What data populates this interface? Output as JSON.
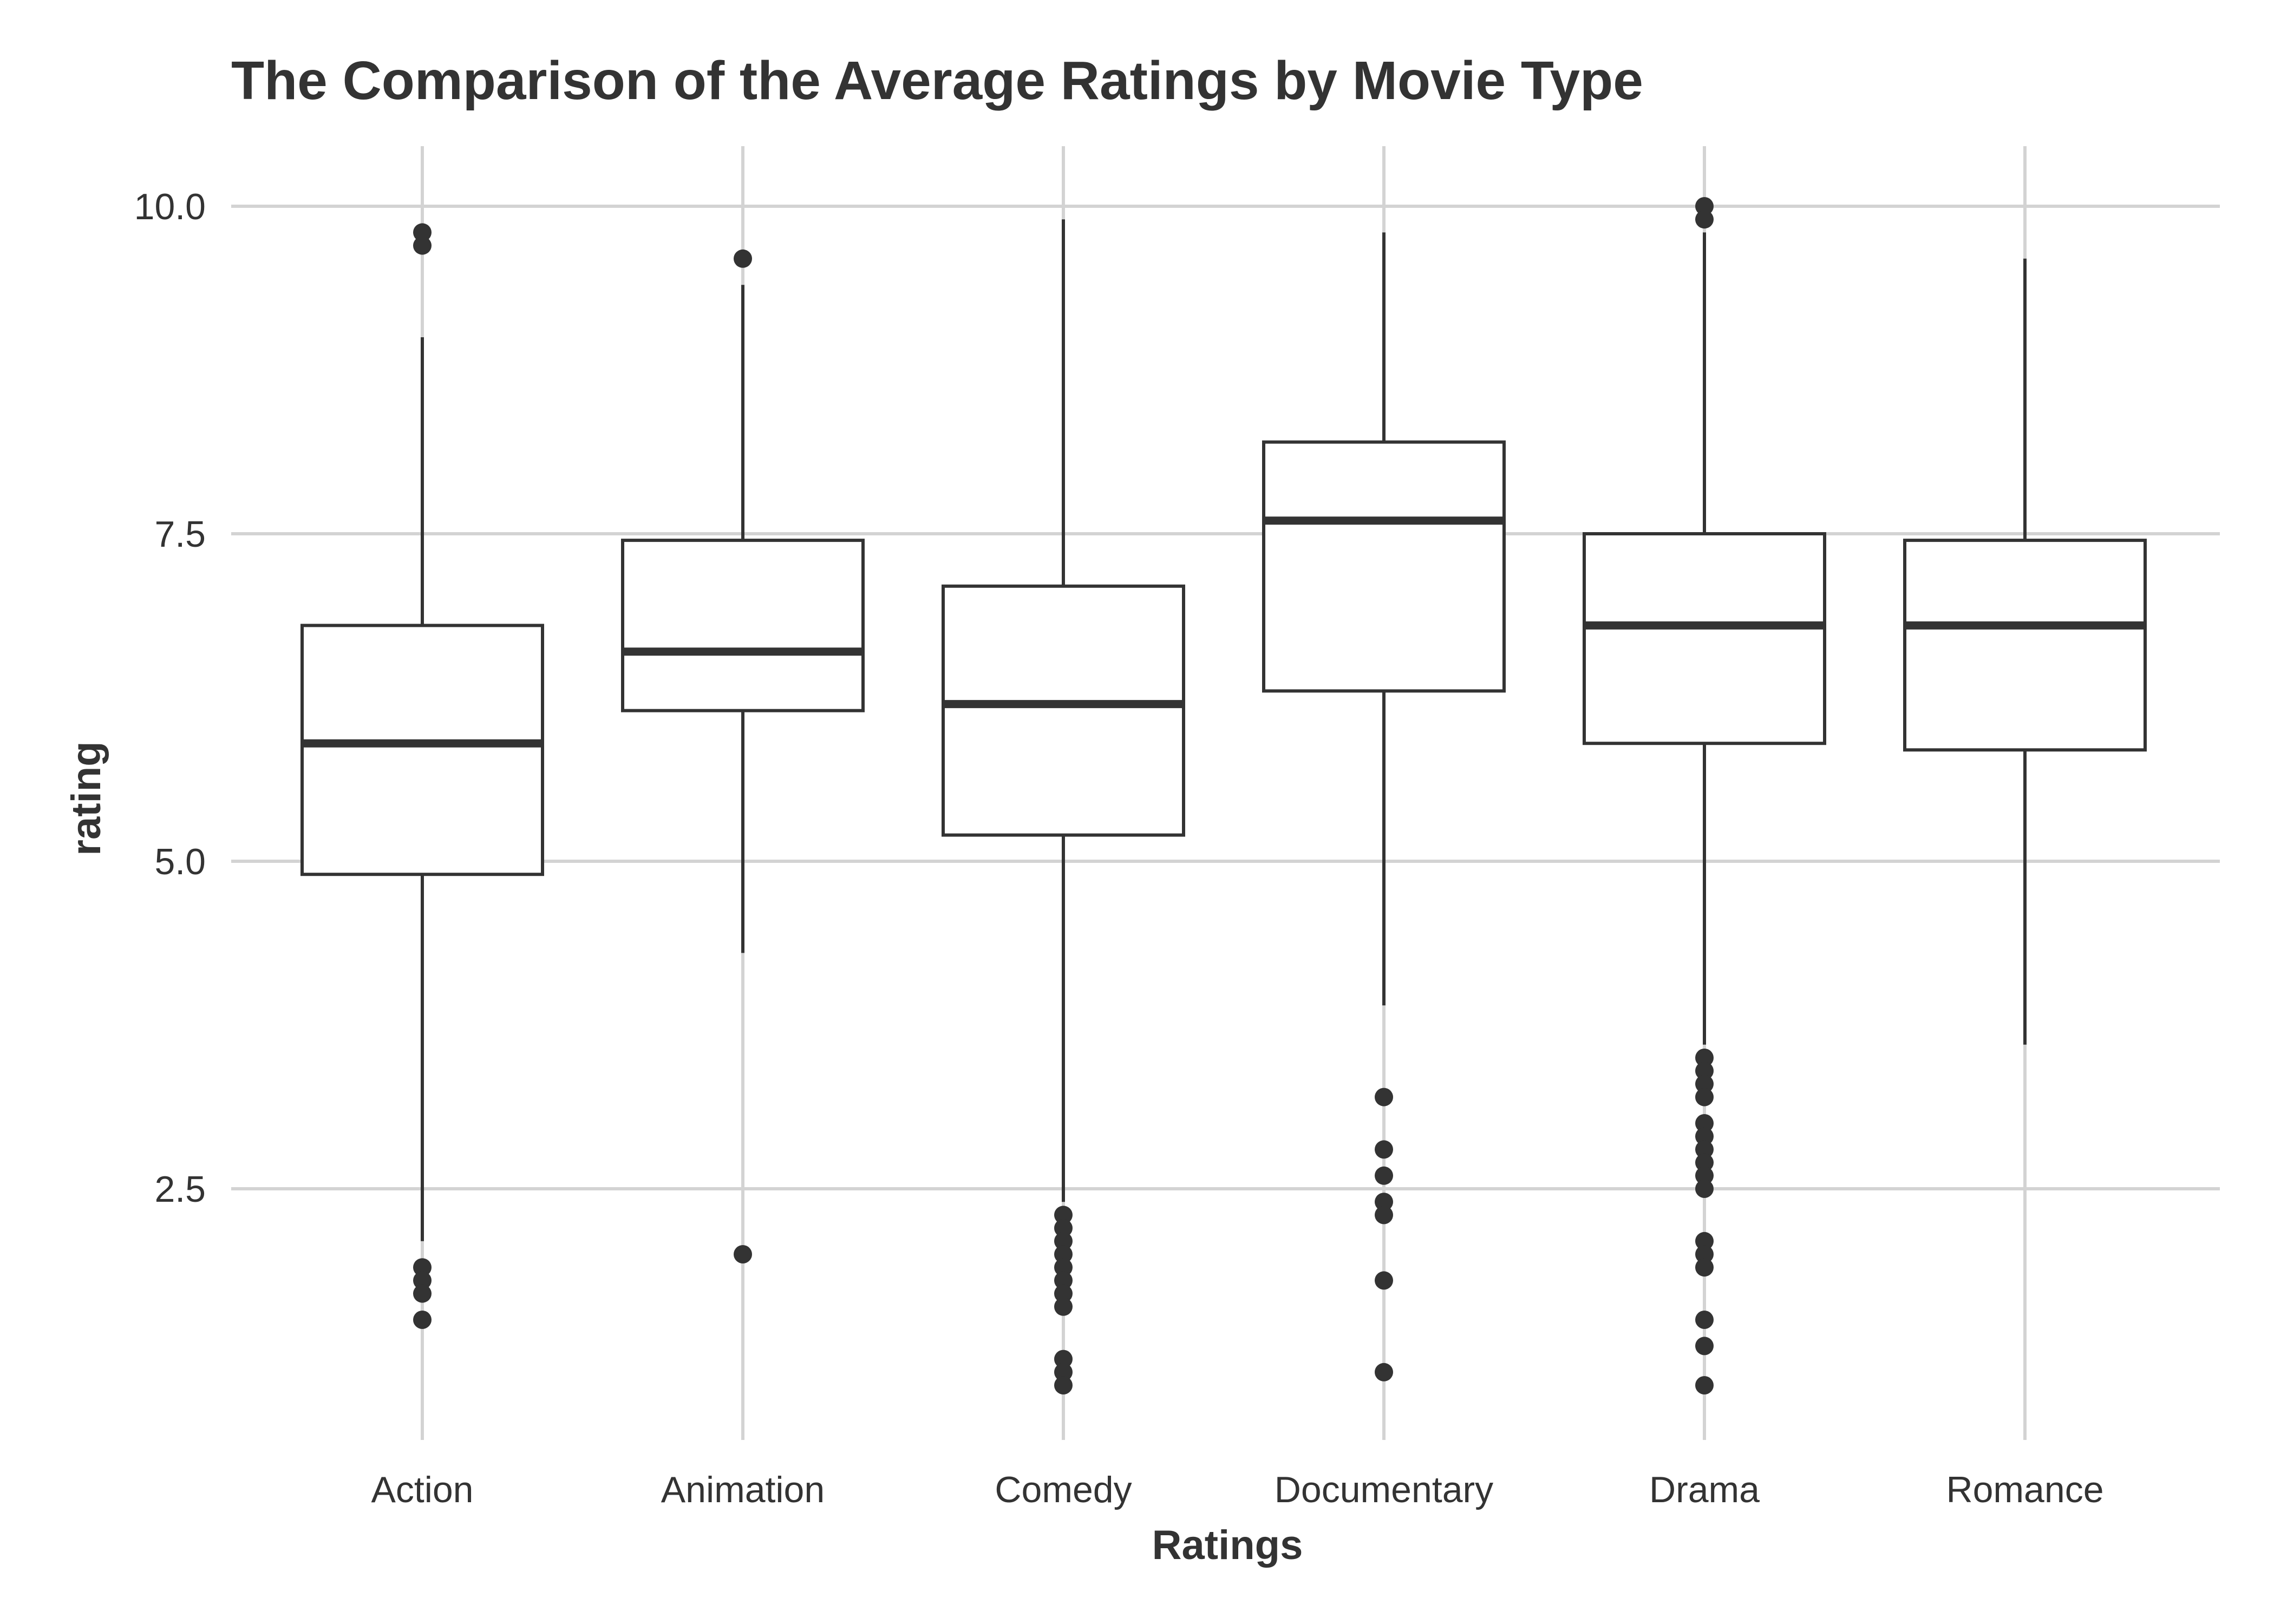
{
  "chart_data": {
    "type": "box",
    "title": "The Comparison of the Average Ratings by Movie Type",
    "xlabel": "Ratings",
    "ylabel": "rating",
    "ylim": [
      0.7,
      10.5
    ],
    "yticks": [
      2.5,
      5.0,
      7.5,
      10.0
    ],
    "ytick_labels": [
      "2.5",
      "5.0",
      "7.5",
      "10.0"
    ],
    "grid": true,
    "categories": [
      "Action",
      "Animation",
      "Comedy",
      "Documentary",
      "Drama",
      "Romance"
    ],
    "boxes": [
      {
        "category": "Action",
        "whisker_low": 2.1,
        "q1": 4.9,
        "median": 5.9,
        "q3": 6.8,
        "whisker_high": 9.0,
        "outliers": [
          9.8,
          9.7,
          1.9,
          1.8,
          1.7,
          1.5
        ]
      },
      {
        "category": "Animation",
        "whisker_low": 4.3,
        "q1": 6.15,
        "median": 6.6,
        "q3": 7.45,
        "whisker_high": 9.4,
        "outliers": [
          9.6,
          2.0
        ]
      },
      {
        "category": "Comedy",
        "whisker_low": 2.4,
        "q1": 5.2,
        "median": 6.2,
        "q3": 7.1,
        "whisker_high": 9.9,
        "outliers": [
          2.3,
          2.2,
          2.1,
          2.0,
          1.9,
          1.8,
          1.7,
          1.6,
          1.2,
          1.1,
          1.0
        ]
      },
      {
        "category": "Documentary",
        "whisker_low": 3.9,
        "q1": 6.3,
        "median": 7.6,
        "q3": 8.2,
        "whisker_high": 9.8,
        "outliers": [
          3.2,
          2.8,
          2.6,
          2.4,
          2.3,
          1.8,
          1.1
        ]
      },
      {
        "category": "Drama",
        "whisker_low": 3.6,
        "q1": 5.9,
        "median": 6.8,
        "q3": 7.5,
        "whisker_high": 9.8,
        "outliers": [
          10.0,
          9.9,
          3.5,
          3.4,
          3.3,
          3.2,
          3.0,
          2.9,
          2.8,
          2.7,
          2.6,
          2.5,
          2.1,
          2.0,
          1.9,
          1.5,
          1.3,
          1.0
        ]
      },
      {
        "category": "Romance",
        "whisker_low": 3.6,
        "q1": 5.85,
        "median": 6.8,
        "q3": 7.45,
        "whisker_high": 9.6,
        "outliers": []
      }
    ],
    "colors": {
      "box_stroke": "#333333",
      "box_fill": "#ffffff",
      "grid": "#d3d3d3",
      "text": "#333333"
    }
  }
}
